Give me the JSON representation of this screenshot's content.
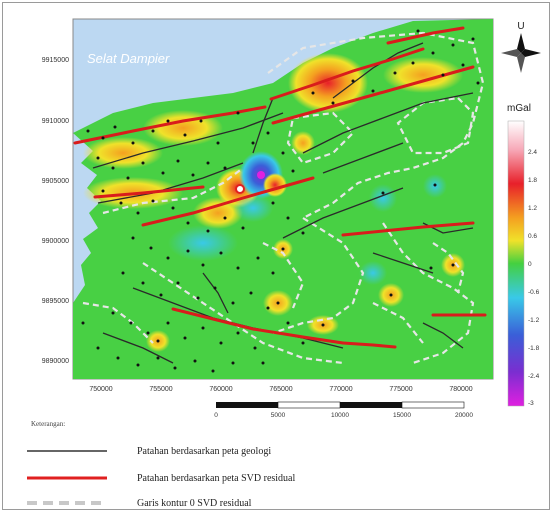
{
  "map": {
    "sea_label": "Selat Dampier",
    "north_label": "U",
    "y_ticks": [
      "9915000",
      "9910000",
      "9905000",
      "9900000",
      "9895000",
      "9890000"
    ],
    "x_ticks": [
      "750000",
      "755000",
      "760000",
      "765000",
      "770000",
      "775000",
      "780000"
    ]
  },
  "colorbar": {
    "unit": "mGal",
    "labels": [
      "2.4",
      "1.8",
      "1.2",
      "0.6",
      "0",
      "-0.6",
      "-1.2",
      "-1.8",
      "-2.4",
      "-3"
    ],
    "colors": [
      "#ffffff",
      "#f7a9b8",
      "#e8202a",
      "#f4a020",
      "#f0e22a",
      "#44d040",
      "#39c9e8",
      "#3a5fd8",
      "#7a2ed0",
      "#e020e0"
    ]
  },
  "scalebar": {
    "labels": [
      "0",
      "5000",
      "10000",
      "15000",
      "20000"
    ]
  },
  "legend": {
    "title": "Keterangan:",
    "items": [
      {
        "label": "Patahan berdasarkan peta geologi",
        "color": "#333333"
      },
      {
        "label": "Patahan berdasarkan peta SVD residual",
        "color": "#e02020"
      },
      {
        "label": "Garis kontur 0 SVD residual",
        "color": "#c8c8c8"
      }
    ]
  }
}
